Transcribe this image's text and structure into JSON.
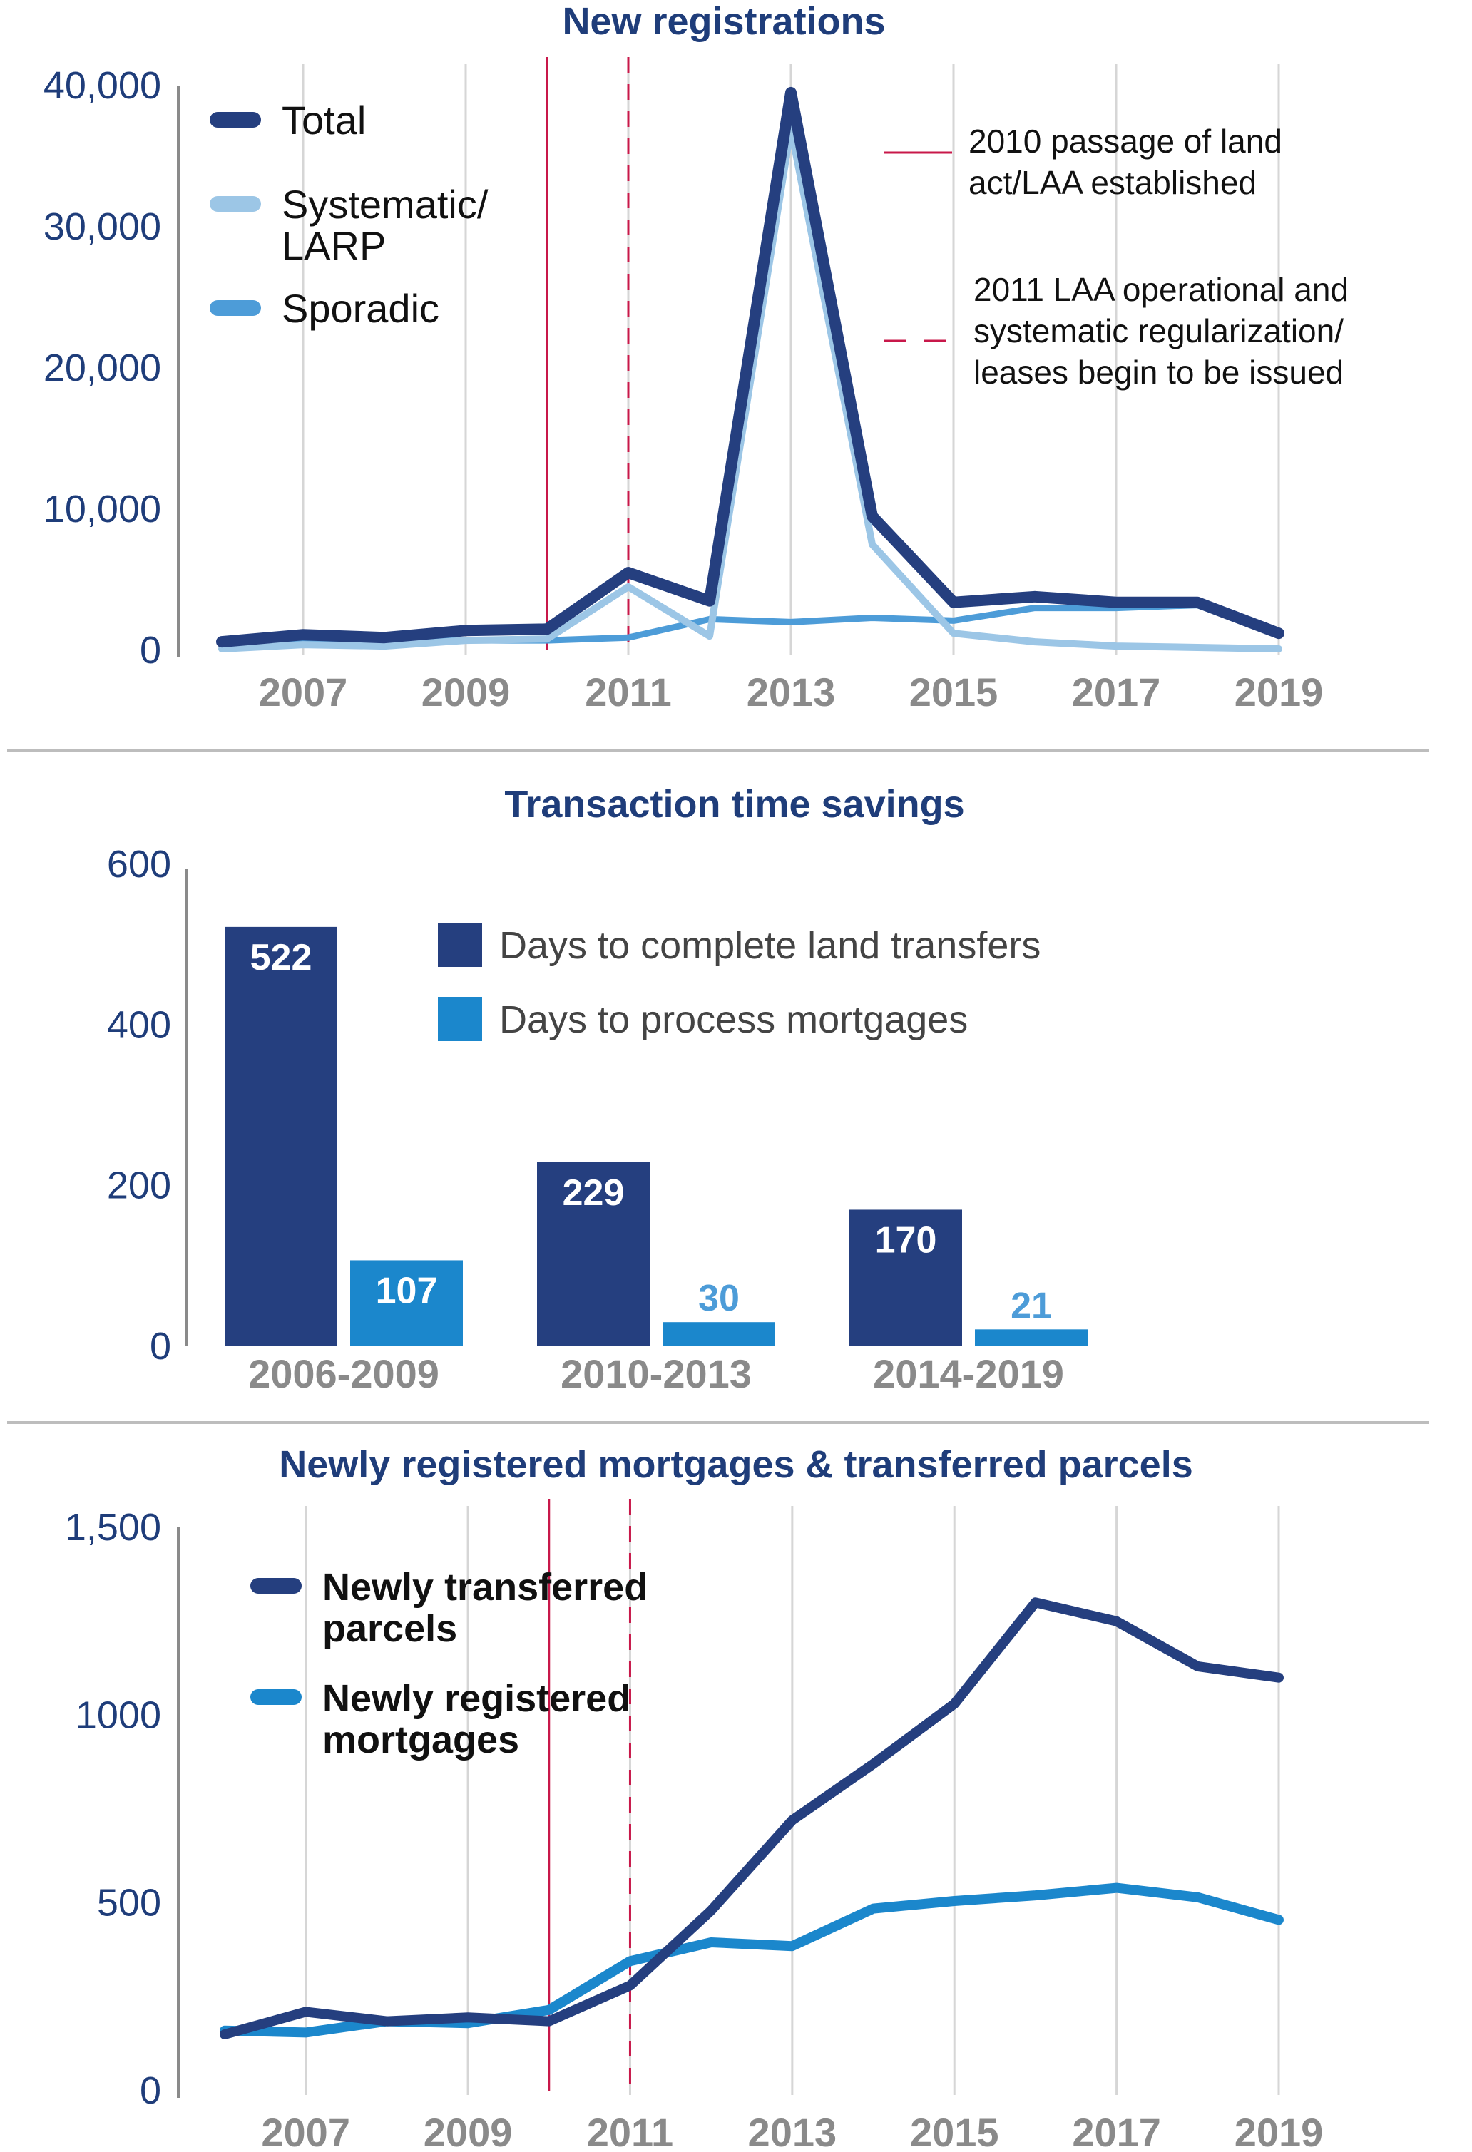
{
  "colors": {
    "dark_blue": "#253f7f",
    "light_blue": "#9cc6e6",
    "mid_blue": "#4d9cd8",
    "bar_light": "#1b87cc",
    "event_red": "#c8184a",
    "grid": "#d6d6d6",
    "axis_text": "#1f3d7a",
    "tick_gray": "#8a8a8a"
  },
  "chart_data": [
    {
      "type": "line",
      "title": "New registrations",
      "x": [
        2006,
        2007,
        2008,
        2009,
        2010,
        2011,
        2012,
        2013,
        2014,
        2015,
        2016,
        2017,
        2018,
        2019
      ],
      "x_tick_labels": [
        "2007",
        "2009",
        "2011",
        "2013",
        "2015",
        "2017",
        "2019"
      ],
      "y_tick_labels": [
        "40,000",
        "30,000",
        "20,000",
        "10,000",
        "0"
      ],
      "ylim": [
        0,
        40000
      ],
      "series": [
        {
          "name": "Total",
          "color": "#253f7f",
          "values": [
            600,
            1100,
            900,
            1400,
            1500,
            5500,
            3500,
            39500,
            9500,
            3400,
            3800,
            3400,
            3400,
            1200
          ]
        },
        {
          "name": "Systematic/ LARP",
          "color": "#9cc6e6",
          "values": [
            100,
            400,
            300,
            700,
            800,
            4500,
            1000,
            37000,
            7500,
            1200,
            600,
            300,
            200,
            100
          ]
        },
        {
          "name": "Sporadic",
          "color": "#4d9cd8",
          "values": [
            500,
            700,
            600,
            700,
            700,
            900,
            2200,
            2000,
            2300,
            2100,
            3000,
            3000,
            3200,
            1200
          ]
        }
      ],
      "legend": {
        "placement": "top-left",
        "items": [
          {
            "lines": [
              "Total"
            ],
            "color": "#253f7f"
          },
          {
            "lines": [
              "Systematic/",
              "LARP"
            ],
            "color": "#9cc6e6"
          },
          {
            "lines": [
              "Sporadic"
            ],
            "color": "#4d9cd8"
          }
        ]
      },
      "events": [
        {
          "x": 2010,
          "style": "solid",
          "lines": [
            "2010 passage of land",
            "act/LAA established"
          ]
        },
        {
          "x": 2011,
          "style": "dashed",
          "lines": [
            "2011 LAA operational and",
            "systematic regularization/",
            "leases begin to be issued"
          ]
        }
      ],
      "grid": "vertical"
    },
    {
      "type": "bar",
      "title": "Transaction time savings",
      "categories": [
        "2006-2009",
        "2010-2013",
        "2014-2019"
      ],
      "ylim": [
        0,
        600
      ],
      "y_tick_labels": [
        "600",
        "400",
        "200",
        "0"
      ],
      "series": [
        {
          "name": "Days to complete land transfers",
          "color": "#253f7f",
          "values": [
            522,
            229,
            170
          ],
          "labels": [
            "522",
            "229",
            "170"
          ]
        },
        {
          "name": "Days to process mortgages",
          "color": "#1b87cc",
          "values": [
            107,
            30,
            21
          ],
          "labels": [
            "107",
            "30",
            "21"
          ]
        }
      ],
      "legend": {
        "placement": "top-center"
      }
    },
    {
      "type": "line",
      "title": "Newly registered mortgages & transferred parcels",
      "x": [
        2006,
        2007,
        2008,
        2009,
        2010,
        2011,
        2012,
        2013,
        2014,
        2015,
        2016,
        2017,
        2018,
        2019
      ],
      "x_tick_labels": [
        "2007",
        "2009",
        "2011",
        "2013",
        "2015",
        "2017",
        "2019"
      ],
      "y_tick_labels": [
        "1,500",
        "1000",
        "500",
        "0"
      ],
      "ylim": [
        0,
        1500
      ],
      "series": [
        {
          "name": "Newly transferred parcels",
          "color": "#253f7f",
          "values": [
            150,
            210,
            185,
            195,
            185,
            280,
            480,
            720,
            870,
            1030,
            1300,
            1250,
            1130,
            1100
          ]
        },
        {
          "name": "Newly registered mortgages",
          "color": "#1b87cc",
          "values": [
            160,
            155,
            185,
            180,
            215,
            345,
            395,
            385,
            485,
            505,
            520,
            540,
            515,
            455
          ]
        }
      ],
      "legend": {
        "placement": "top-left",
        "items": [
          {
            "lines": [
              "Newly transferred",
              "parcels"
            ],
            "color": "#253f7f"
          },
          {
            "lines": [
              "Newly registered",
              "mortgages"
            ],
            "color": "#1b87cc"
          }
        ]
      },
      "events": [
        {
          "x": 2010,
          "style": "solid"
        },
        {
          "x": 2011,
          "style": "dashed"
        }
      ],
      "grid": "vertical"
    }
  ]
}
